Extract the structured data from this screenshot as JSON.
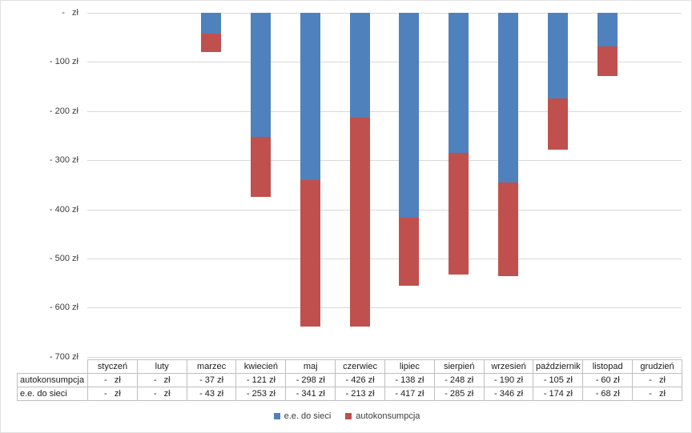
{
  "chart_data": {
    "type": "bar",
    "stacked": true,
    "orientation": "vertical",
    "title": "",
    "categories": [
      "styczeń",
      "luty",
      "marzec",
      "kwiecień",
      "maj",
      "czerwiec",
      "lipiec",
      "sierpień",
      "wrzesień",
      "październik",
      "listopad",
      "grudzień"
    ],
    "series": [
      {
        "name": "e.e. do sieci",
        "color": "#4F81BD",
        "values": [
          0,
          0,
          -43,
          -253,
          -341,
          -213,
          -417,
          -285,
          -346,
          -174,
          -68,
          0
        ]
      },
      {
        "name": "autokonsumpcja",
        "color": "#C0504D",
        "values": [
          0,
          0,
          -37,
          -121,
          -298,
          -426,
          -138,
          -248,
          -190,
          -105,
          -60,
          0
        ]
      }
    ],
    "ylim": [
      -700,
      0
    ],
    "ytick_step": 100,
    "ytick_labels": [
      "-   zł",
      "- 100 zł",
      "- 200 zł",
      "- 300 zł",
      "- 400 zł",
      "- 500 zł",
      "- 600 zł",
      "- 700 zł"
    ],
    "grid": true,
    "legend_position": "bottom",
    "currency": "zł"
  },
  "data_table": {
    "column_headers": [
      "styczeń",
      "luty",
      "marzec",
      "kwiecień",
      "maj",
      "czerwiec",
      "lipiec",
      "sierpień",
      "wrzesień",
      "październik",
      "listopad",
      "grudzień"
    ],
    "rows": [
      {
        "label": "autokonsumpcja",
        "cells": [
          "-   zł",
          "-   zł",
          "- 37 zł",
          "- 121 zł",
          "- 298 zł",
          "- 426 zł",
          "- 138 zł",
          "- 248 zł",
          "- 190 zł",
          "- 105 zł",
          "- 60 zł",
          "-   zł"
        ]
      },
      {
        "label": "e.e. do sieci",
        "cells": [
          "-   zł",
          "-   zł",
          "- 43 zł",
          "- 253 zł",
          "- 341 zł",
          "- 213 zł",
          "- 417 zł",
          "- 285 zł",
          "- 346 zł",
          "- 174 zł",
          "- 68 zł",
          "-   zł"
        ]
      }
    ]
  },
  "legend": {
    "items": [
      {
        "label": "e.e. do sieci",
        "color": "#4F81BD"
      },
      {
        "label": "autokonsumpcja",
        "color": "#C0504D"
      }
    ]
  },
  "colors": {
    "bar_blue": "#4F81BD",
    "bar_red": "#C0504D",
    "gridline": "#D9D9D9",
    "table_border": "#BFBFBF",
    "axis_text": "#3C3C3C",
    "background": "#FFFFFF"
  }
}
